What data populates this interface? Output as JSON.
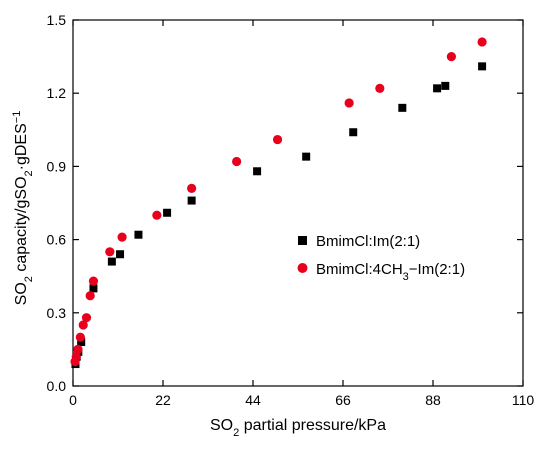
{
  "chart_data": {
    "type": "scatter",
    "title": "",
    "xlabel": {
      "pre": "SO",
      "sub": "2",
      "post": " partial pressure/kPa"
    },
    "ylabel": {
      "p1": "SO",
      "s1": "2",
      "p2": " capacity/gSO",
      "s2": "2",
      "p3": "·gDES",
      "sup": "−1"
    },
    "xlim": [
      0,
      110
    ],
    "ylim": [
      0,
      1.5
    ],
    "xticks": [
      0,
      22,
      44,
      66,
      88,
      110
    ],
    "xtick_labels": [
      "0",
      "22",
      "44",
      "66",
      "88",
      "110"
    ],
    "yticks": [
      0,
      0.3,
      0.6,
      0.9,
      1.2,
      1.5
    ],
    "ytick_labels": [
      "0.0",
      "0.3",
      "0.6",
      "0.9",
      "1.2",
      "1.5"
    ],
    "grid": false,
    "legend_position": "center-right",
    "series": [
      {
        "name": "BmimCl:Im(2:1)",
        "marker": "square",
        "color": "#000000",
        "x": [
          0.6,
          0.9,
          1.3,
          2.0,
          5.0,
          9.5,
          11.5,
          16.0,
          23.0,
          29.0,
          45.0,
          57.0,
          68.5,
          80.5,
          89.0,
          91.0,
          100.0
        ],
        "y": [
          0.09,
          0.12,
          0.14,
          0.18,
          0.4,
          0.51,
          0.54,
          0.62,
          0.71,
          0.76,
          0.88,
          0.94,
          1.04,
          1.14,
          1.22,
          1.23,
          1.31
        ]
      },
      {
        "name": {
          "pre": "BmimCl:4CH",
          "sub": "3",
          "post": "−Im(2:1)"
        },
        "marker": "circle",
        "color": "#e8001c",
        "x": [
          0.5,
          0.8,
          1.2,
          1.8,
          2.5,
          3.3,
          4.2,
          5.0,
          9.0,
          12.0,
          20.5,
          29.0,
          40.0,
          50.0,
          67.5,
          75.0,
          92.5,
          100.0
        ],
        "y": [
          0.1,
          0.12,
          0.15,
          0.2,
          0.25,
          0.28,
          0.37,
          0.43,
          0.55,
          0.61,
          0.7,
          0.81,
          0.92,
          1.01,
          1.16,
          1.22,
          1.35,
          1.41
        ]
      }
    ]
  }
}
